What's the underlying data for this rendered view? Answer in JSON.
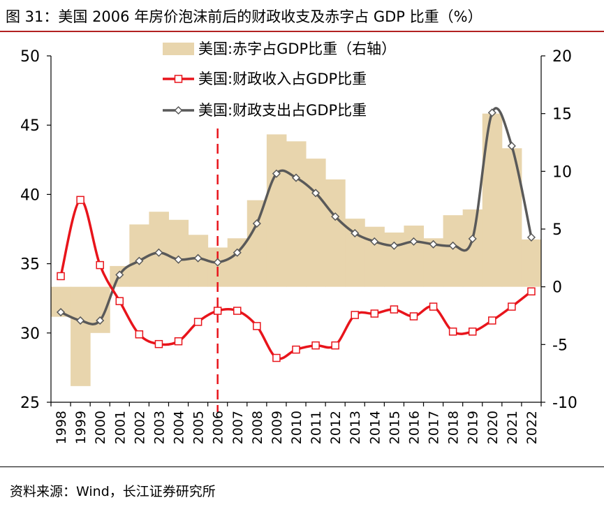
{
  "figure": {
    "title": "图 31：美国 2006 年房价泡沫前后的财政收支及赤字占 GDP 比重（%）",
    "source": "资料来源：Wind，长江证券研究所"
  },
  "colors": {
    "deficit": "#e8d5ad",
    "revenue": "#e8141b",
    "expenditure": "#595959",
    "marker_line": "#e8141b",
    "title_rule": "#b22222"
  },
  "chart_data": {
    "type": "line",
    "x": [
      "1998",
      "1999",
      "2000",
      "2001",
      "2002",
      "2003",
      "2004",
      "2005",
      "2006",
      "2007",
      "2008",
      "2009",
      "2010",
      "2011",
      "2012",
      "2013",
      "2014",
      "2015",
      "2016",
      "2017",
      "2018",
      "2019",
      "2020",
      "2021",
      "2022"
    ],
    "y_left": {
      "range": [
        25,
        50
      ],
      "ticks": [
        25,
        30,
        35,
        40,
        45,
        50
      ]
    },
    "y_right": {
      "range": [
        -10,
        20
      ],
      "ticks": [
        -10,
        -5,
        0,
        5,
        10,
        15,
        20
      ]
    },
    "series": [
      {
        "name": "美国:赤字占GDP比重（右轴）",
        "kind": "bar",
        "axis": "right",
        "values": [
          -2.6,
          -8.6,
          -4.0,
          1.8,
          5.4,
          6.5,
          5.8,
          4.5,
          3.4,
          4.2,
          7.5,
          13.2,
          12.6,
          11.1,
          9.3,
          5.9,
          5.2,
          4.7,
          5.3,
          4.2,
          6.2,
          6.7,
          15.0,
          12.0,
          4.1
        ]
      },
      {
        "name": "美国:财政收入占GDP比重",
        "kind": "line",
        "axis": "left",
        "marker": "square",
        "values": [
          34.1,
          39.6,
          34.9,
          32.3,
          29.9,
          29.2,
          29.4,
          30.8,
          31.6,
          31.6,
          30.5,
          28.2,
          28.8,
          29.1,
          29.1,
          31.3,
          31.4,
          31.7,
          31.2,
          31.9,
          30.1,
          30.1,
          30.9,
          31.9,
          33.0
        ]
      },
      {
        "name": "美国:财政支出占GDP比重",
        "kind": "line",
        "axis": "left",
        "marker": "diamond",
        "values": [
          31.5,
          30.9,
          30.9,
          34.2,
          35.2,
          35.8,
          35.3,
          35.4,
          35.1,
          35.8,
          37.9,
          41.5,
          41.2,
          40.1,
          38.4,
          37.2,
          36.6,
          36.3,
          36.6,
          36.4,
          36.3,
          36.8,
          45.9,
          43.5,
          36.9
        ]
      }
    ],
    "reference_line": {
      "x": "2006",
      "style": "dashed",
      "color": "#e8141b"
    },
    "legend": "top-center",
    "grid": false
  }
}
